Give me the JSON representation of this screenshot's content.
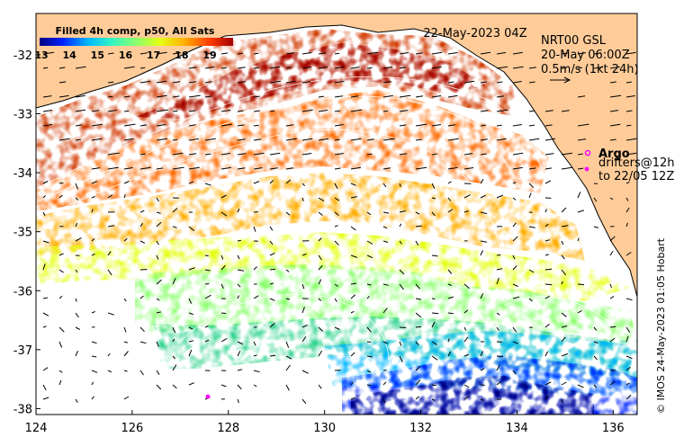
{
  "map": {
    "colorbar": {
      "title": "Filled 4h comp, p50, All Sats",
      "ticks": [
        "13",
        "14",
        "15",
        "16",
        "17",
        "18",
        "19"
      ],
      "colors": [
        "#00007f",
        "#0022ff",
        "#00b7ff",
        "#31f3c5",
        "#8aff6d",
        "#e5ff13",
        "#ffae00",
        "#ff3a00",
        "#a30000"
      ]
    },
    "date_label": "22-May-2023 04Z",
    "legend": {
      "line1": "NRT00 GSL",
      "line2": "20-May 06:00Z",
      "line3": "0.5m/s (1kt 24h)"
    },
    "argo": {
      "label": "Argo",
      "drifters_line1": "drifters@12h",
      "drifters_line2": "to 22/05 12Z",
      "color": "#ff00ff"
    },
    "credit": "© IMOS 24-May-2023 01:05 Hobart",
    "x_axis": {
      "labels": [
        "124",
        "126",
        "128",
        "130",
        "132",
        "134",
        "136"
      ],
      "values": [
        124,
        126,
        128,
        130,
        132,
        134,
        136
      ],
      "range": [
        124,
        136.5
      ]
    },
    "y_axis": {
      "labels": [
        "-32",
        "-33",
        "-34",
        "-35",
        "-36",
        "-37",
        "-38"
      ],
      "values": [
        -32,
        -33,
        -34,
        -35,
        -36,
        -37,
        -38
      ],
      "range": [
        -38.1,
        -31.3
      ]
    },
    "land_color": "#ffcc99"
  }
}
